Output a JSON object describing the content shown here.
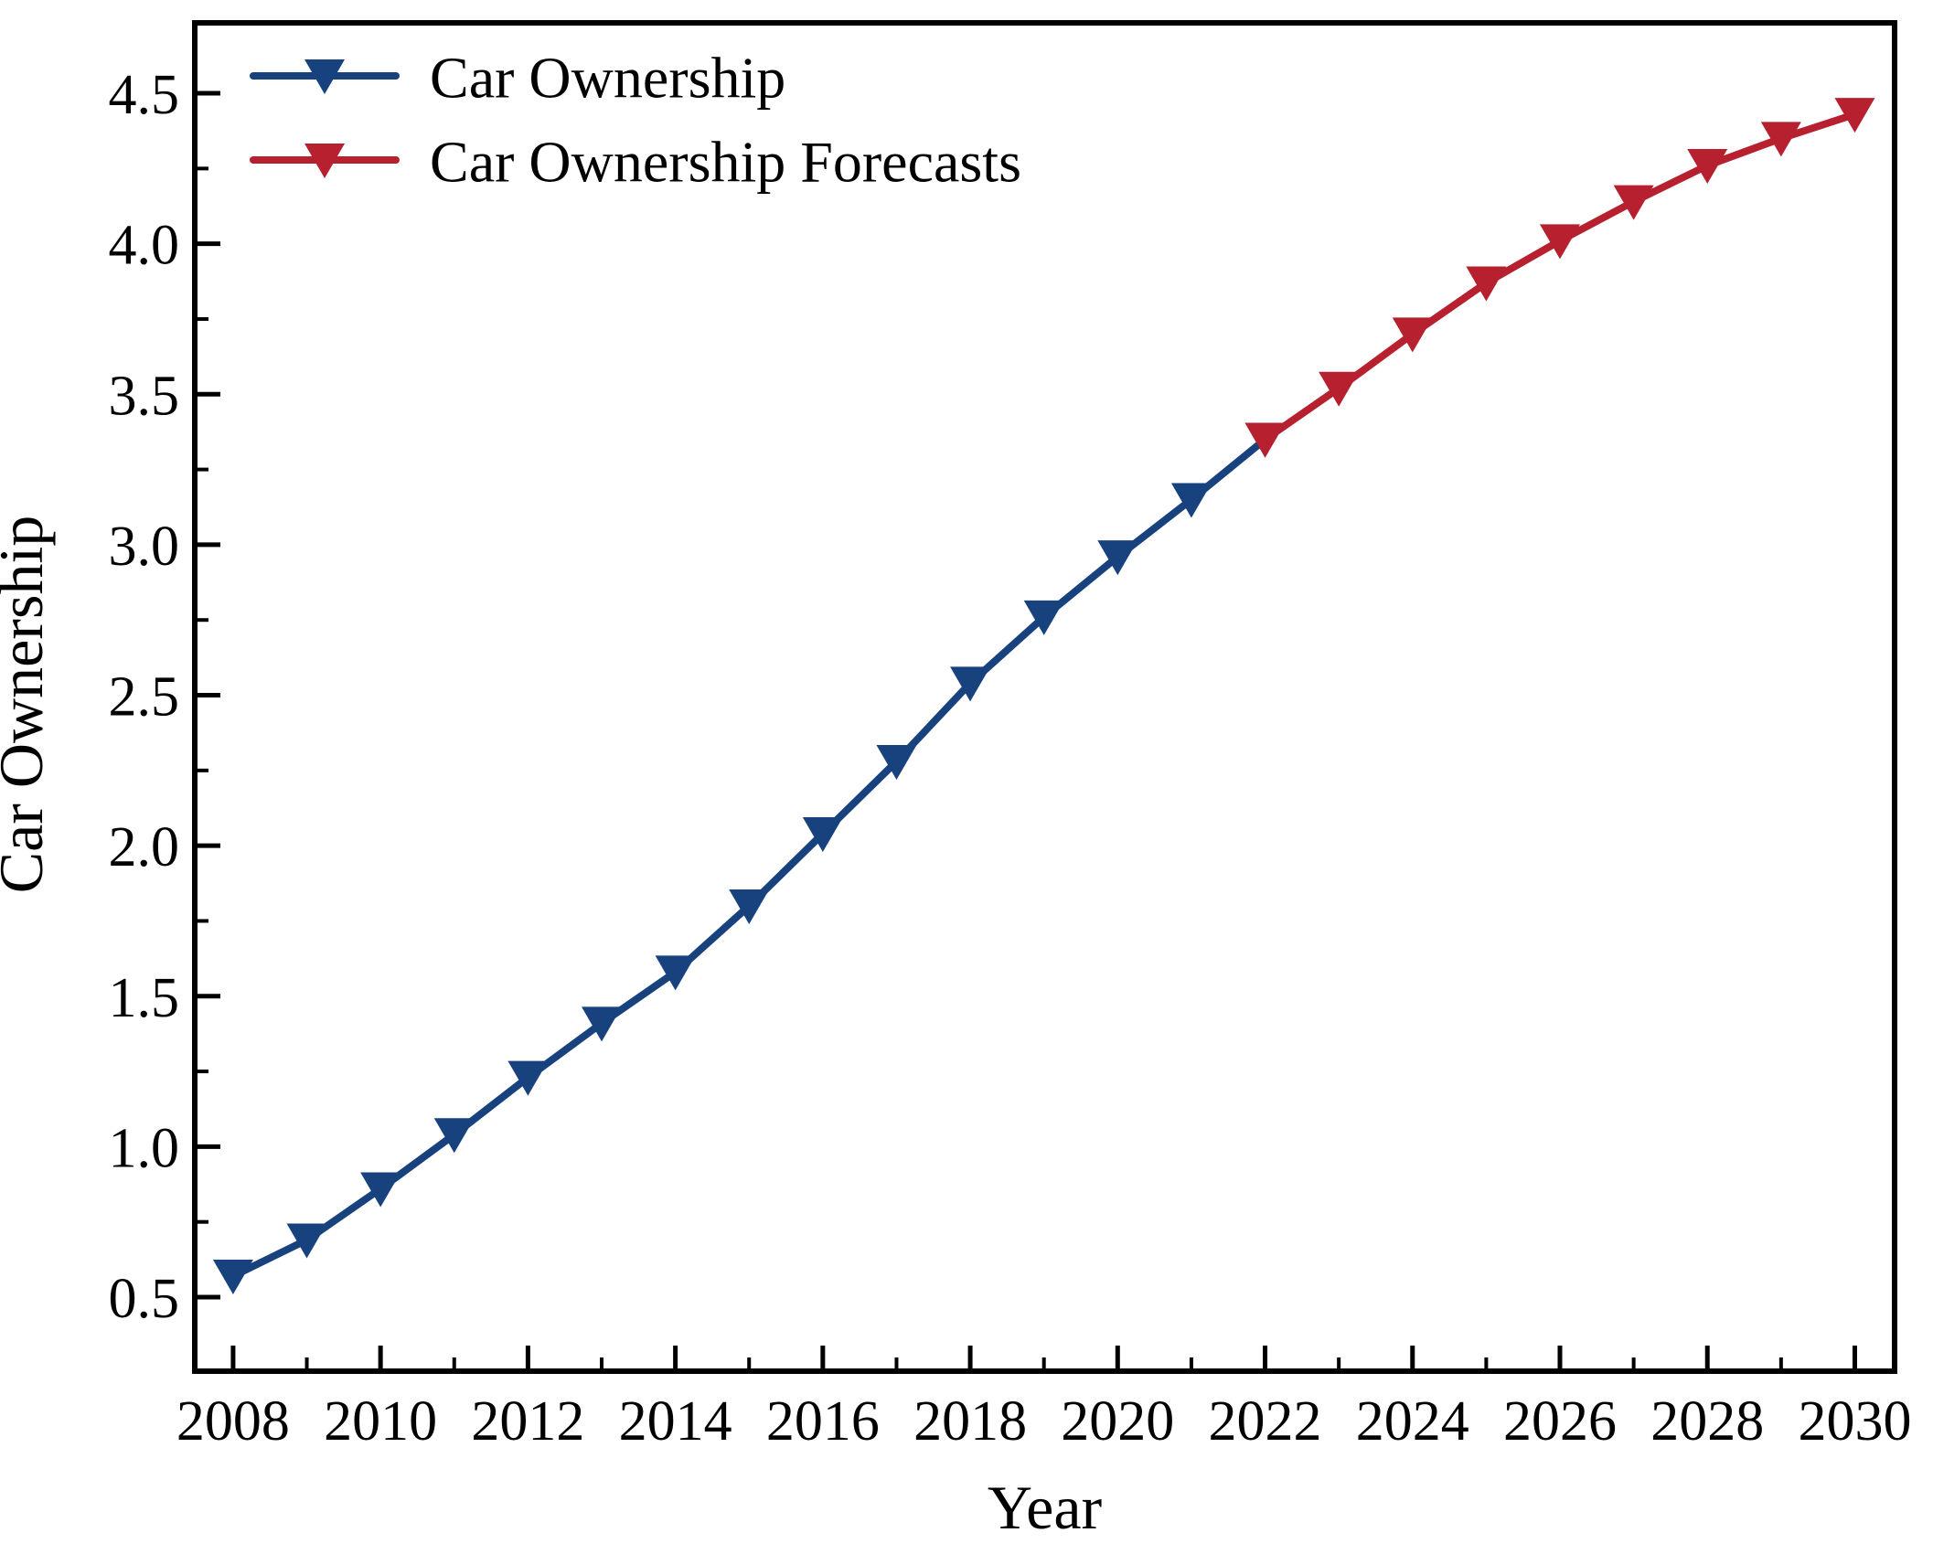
{
  "figure": {
    "background": "#ffffff",
    "axis_color": "#000000",
    "tick_color": "#000000"
  },
  "chart_data": {
    "type": "line",
    "title": "",
    "xlabel": "Year",
    "ylabel": "Car Ownership",
    "grid": false,
    "legend_position": "upper-left",
    "xlim": [
      2007.48,
      2030.54
    ],
    "ylim": [
      0.254,
      4.734
    ],
    "x_major_ticks": [
      2008,
      2010,
      2012,
      2014,
      2016,
      2018,
      2020,
      2022,
      2024,
      2026,
      2028,
      2030
    ],
    "x_minor_ticks": [
      2009,
      2011,
      2013,
      2015,
      2017,
      2019,
      2021,
      2023,
      2025,
      2027,
      2029
    ],
    "y_major_ticks": [
      0.5,
      1.0,
      1.5,
      2.0,
      2.5,
      3.0,
      3.5,
      4.0,
      4.5
    ],
    "y_major_tick_labels": [
      "0.5",
      "1.0",
      "1.5",
      "2.0",
      "2.5",
      "3.0",
      "3.5",
      "4.0",
      "4.5"
    ],
    "y_minor_ticks": [
      0.75,
      1.25,
      1.75,
      2.25,
      2.75,
      3.25,
      3.75,
      4.25
    ],
    "series": [
      {
        "name": "Car Ownership",
        "color": "#17427E",
        "marker": "triangle-down",
        "x": [
          2008,
          2009,
          2010,
          2011,
          2012,
          2013,
          2014,
          2015,
          2016,
          2017,
          2018,
          2019,
          2020,
          2021,
          2022
        ],
        "values": [
          0.57,
          0.69,
          0.86,
          1.04,
          1.23,
          1.41,
          1.58,
          1.8,
          2.04,
          2.28,
          2.54,
          2.76,
          2.96,
          3.15,
          3.35
        ]
      },
      {
        "name": "Car Ownership Forecasts",
        "color": "#B7202E",
        "marker": "triangle-down",
        "x": [
          2022,
          2023,
          2024,
          2025,
          2026,
          2027,
          2028,
          2029,
          2030
        ],
        "values": [
          3.35,
          3.52,
          3.7,
          3.87,
          4.01,
          4.14,
          4.26,
          4.35,
          4.43
        ]
      }
    ]
  }
}
